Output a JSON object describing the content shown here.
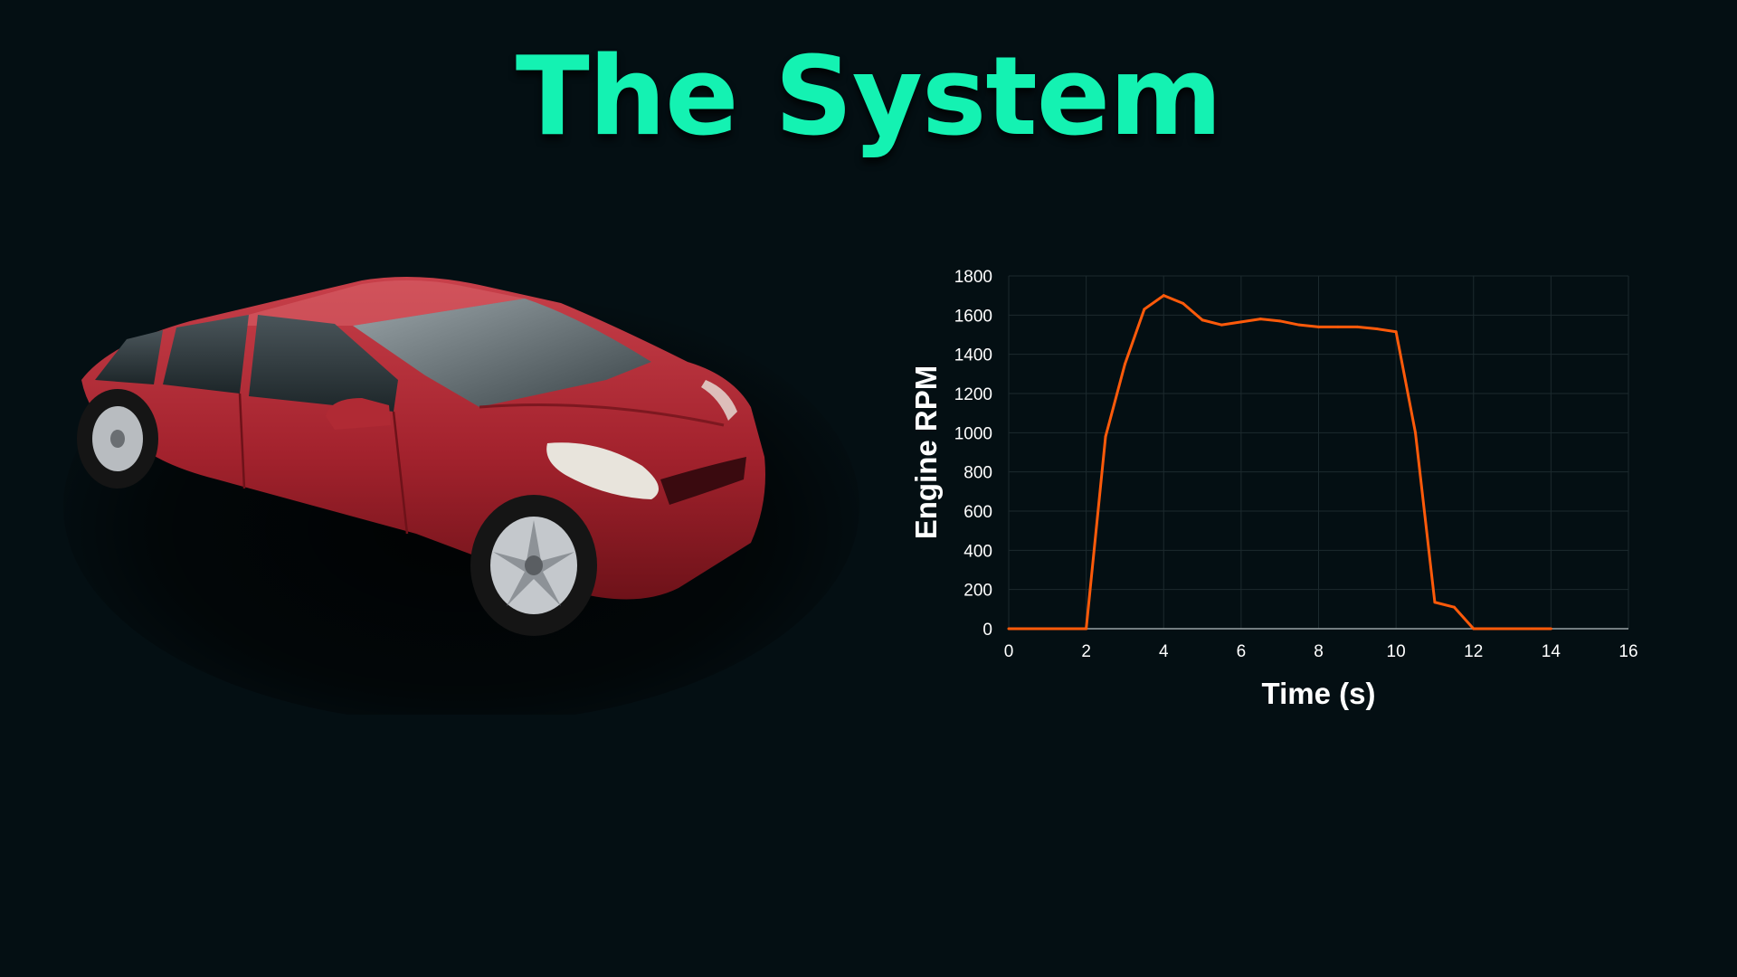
{
  "slide": {
    "title": "The System"
  },
  "photo": {
    "subject": "red hatchback car",
    "body_color": "#a3222d"
  },
  "chart_data": {
    "type": "line",
    "title": "",
    "xlabel": "Time (s)",
    "ylabel": "Engine RPM",
    "xlim": [
      0,
      16
    ],
    "ylim": [
      0,
      1800
    ],
    "xticks": [
      0,
      2,
      4,
      6,
      8,
      10,
      12,
      14,
      16
    ],
    "yticks": [
      0,
      200,
      400,
      600,
      800,
      1000,
      1200,
      1400,
      1600,
      1800
    ],
    "grid": true,
    "legend": "none",
    "series": [
      {
        "color": "#ff5a0a",
        "x": [
          0,
          2,
          2.5,
          3,
          3.5,
          4,
          4.5,
          5,
          5.5,
          6,
          6.5,
          7,
          7.5,
          8,
          8.5,
          9,
          9.5,
          10,
          10.5,
          11,
          11.5,
          12,
          12.5,
          13,
          13.5,
          14
        ],
        "y": [
          0,
          0,
          980,
          1350,
          1630,
          1700,
          1660,
          1575,
          1550,
          1565,
          1580,
          1570,
          1550,
          1540,
          1540,
          1540,
          1530,
          1515,
          1000,
          135,
          110,
          0,
          0,
          0,
          0,
          0
        ]
      }
    ]
  }
}
